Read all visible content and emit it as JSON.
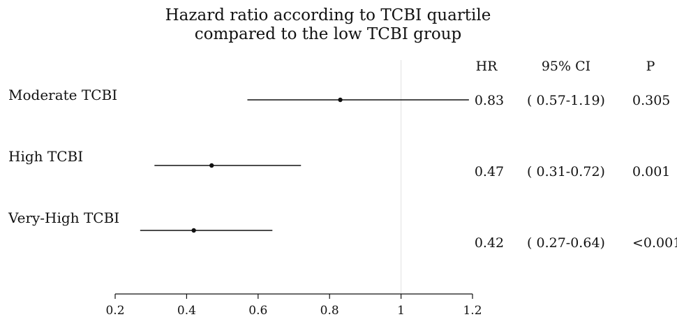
{
  "chart_data": {
    "type": "forest",
    "title": [
      "Hazard ratio according to TCBI quartile",
      "compared to the low TCBI group"
    ],
    "columns": {
      "hr": "HR",
      "ci": "95% CI",
      "p": "P"
    },
    "rows": [
      {
        "label": "Moderate TCBI",
        "hr": 0.83,
        "lo": 0.57,
        "hi": 1.19,
        "hr_text": "0.83",
        "ci_text": "( 0.57-1.19)",
        "p_text": "0.305"
      },
      {
        "label": "High TCBI",
        "hr": 0.47,
        "lo": 0.31,
        "hi": 0.72,
        "hr_text": "0.47",
        "ci_text": "( 0.31-0.72)",
        "p_text": "0.001"
      },
      {
        "label": "Very-High TCBI",
        "hr": 0.42,
        "lo": 0.27,
        "hi": 0.64,
        "hr_text": "0.42",
        "ci_text": "( 0.27-0.64)",
        "p_text": "<0.001"
      }
    ],
    "xlim": [
      0.2,
      1.2
    ],
    "ticks": [
      "0.2",
      "0.4",
      "0.6",
      "0.8",
      "1",
      "1.2"
    ],
    "reference_line": 1,
    "grid": false
  }
}
